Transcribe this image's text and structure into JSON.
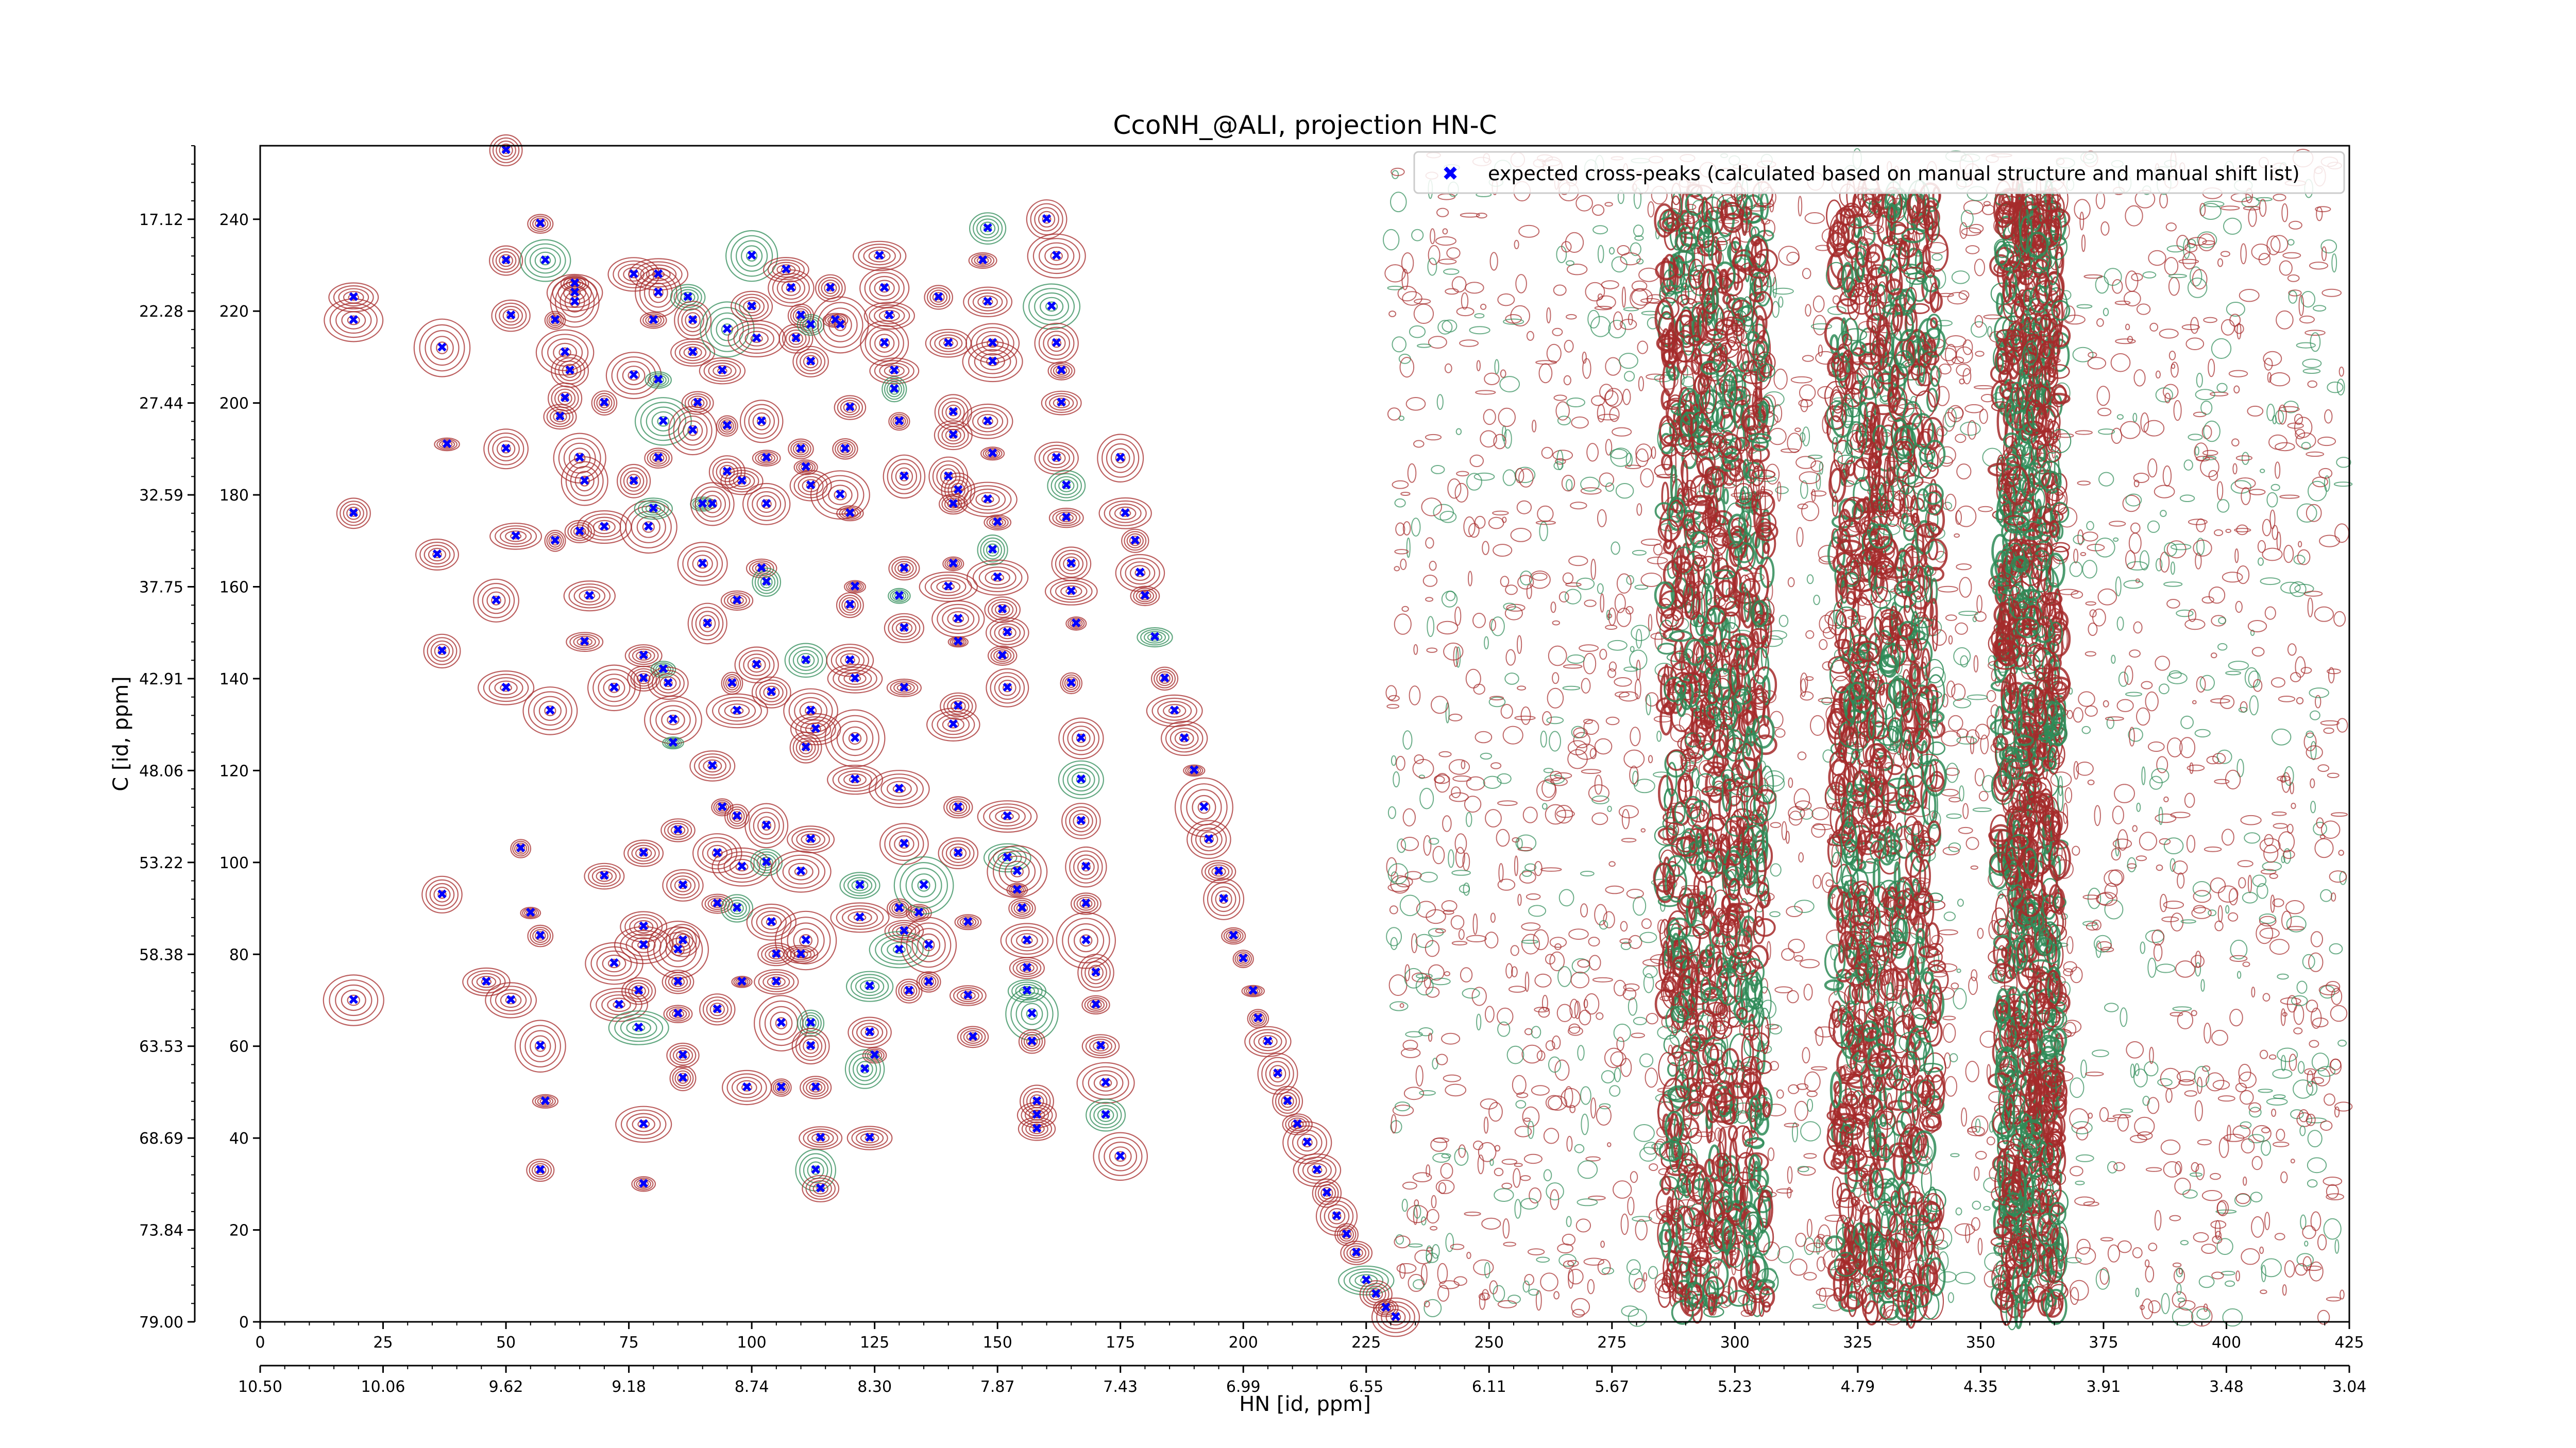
{
  "chart_data": {
    "type": "scatter",
    "title": "CcoNH_@ALI, projection HN-C",
    "xlabel": "",
    "ylabel": "C [id, ppm]",
    "secondary_xlabel": "HN [id, ppm]",
    "xlim": [
      0,
      425
    ],
    "ylim": [
      0,
      256
    ],
    "x_ticks": [
      "0",
      "25",
      "50",
      "75",
      "100",
      "125",
      "150",
      "175",
      "200",
      "225",
      "250",
      "275",
      "300",
      "325",
      "350",
      "375",
      "400",
      "425"
    ],
    "y_ticks": [
      "0",
      "20",
      "40",
      "60",
      "80",
      "100",
      "120",
      "140",
      "160",
      "180",
      "200",
      "220",
      "240"
    ],
    "y_ppm_ticks": [
      "79.00",
      "73.84",
      "68.69",
      "63.53",
      "58.38",
      "53.22",
      "48.06",
      "42.91",
      "37.75",
      "32.59",
      "27.44",
      "22.28",
      "17.12"
    ],
    "x_ppm_ticks": [
      "10.50",
      "10.06",
      "9.62",
      "9.18",
      "8.74",
      "8.30",
      "7.87",
      "7.43",
      "6.99",
      "6.55",
      "6.11",
      "5.67",
      "5.23",
      "4.79",
      "4.35",
      "3.91",
      "3.48",
      "3.04"
    ],
    "legend": {
      "position": "top-right",
      "marker_color": "#0000ff"
    },
    "colors": {
      "positive_contour": "#a52a2a",
      "negative_contour": "#2e8b57",
      "peak_marker": "#0000ff"
    },
    "series": [
      {
        "name": "expected cross-peaks (calculated based on manual structure and manual shift list)",
        "points": [
          [
            19,
            223
          ],
          [
            19,
            218
          ],
          [
            19,
            176
          ],
          [
            19,
            70
          ],
          [
            37,
            212
          ],
          [
            38,
            191
          ],
          [
            36,
            167
          ],
          [
            37,
            146
          ],
          [
            37,
            93
          ],
          [
            46,
            74
          ],
          [
            48,
            157
          ],
          [
            50,
            255
          ],
          [
            50,
            231
          ],
          [
            51,
            219
          ],
          [
            50,
            190
          ],
          [
            52,
            171
          ],
          [
            50,
            138
          ],
          [
            51,
            70
          ],
          [
            53,
            103
          ],
          [
            55,
            89
          ],
          [
            57,
            239
          ],
          [
            58,
            231
          ],
          [
            60,
            218
          ],
          [
            62,
            211
          ],
          [
            63,
            207
          ],
          [
            62,
            201
          ],
          [
            61,
            197
          ],
          [
            60,
            170
          ],
          [
            59,
            133
          ],
          [
            57,
            84
          ],
          [
            57,
            60
          ],
          [
            58,
            48
          ],
          [
            57,
            33
          ],
          [
            64,
            226
          ],
          [
            64,
            224
          ],
          [
            64,
            222
          ],
          [
            65,
            188
          ],
          [
            66,
            183
          ],
          [
            65,
            172
          ],
          [
            67,
            158
          ],
          [
            66,
            148
          ],
          [
            70,
            200
          ],
          [
            70,
            173
          ],
          [
            72,
            138
          ],
          [
            70,
            97
          ],
          [
            72,
            78
          ],
          [
            73,
            69
          ],
          [
            76,
            228
          ],
          [
            76,
            206
          ],
          [
            76,
            183
          ],
          [
            79,
            173
          ],
          [
            78,
            145
          ],
          [
            78,
            140
          ],
          [
            78,
            102
          ],
          [
            78,
            86
          ],
          [
            78,
            82
          ],
          [
            77,
            72
          ],
          [
            77,
            64
          ],
          [
            78,
            43
          ],
          [
            78,
            30
          ],
          [
            81,
            228
          ],
          [
            81,
            224
          ],
          [
            80,
            218
          ],
          [
            81,
            205
          ],
          [
            82,
            196
          ],
          [
            81,
            188
          ],
          [
            80,
            177
          ],
          [
            82,
            142
          ],
          [
            83,
            139
          ],
          [
            84,
            131
          ],
          [
            84,
            126
          ],
          [
            85,
            107
          ],
          [
            86,
            95
          ],
          [
            86,
            83
          ],
          [
            85,
            81
          ],
          [
            85,
            74
          ],
          [
            85,
            67
          ],
          [
            86,
            58
          ],
          [
            86,
            53
          ],
          [
            87,
            223
          ],
          [
            88,
            218
          ],
          [
            88,
            211
          ],
          [
            89,
            200
          ],
          [
            88,
            194
          ],
          [
            90,
            178
          ],
          [
            92,
            178
          ],
          [
            90,
            165
          ],
          [
            91,
            152
          ],
          [
            92,
            121
          ],
          [
            93,
            102
          ],
          [
            93,
            91
          ],
          [
            93,
            68
          ],
          [
            94,
            112
          ],
          [
            95,
            216
          ],
          [
            94,
            207
          ],
          [
            95,
            195
          ],
          [
            95,
            185
          ],
          [
            98,
            183
          ],
          [
            97,
            157
          ],
          [
            96,
            139
          ],
          [
            97,
            133
          ],
          [
            97,
            110
          ],
          [
            98,
            99
          ],
          [
            97,
            90
          ],
          [
            98,
            74
          ],
          [
            99,
            51
          ],
          [
            100,
            232
          ],
          [
            100,
            221
          ],
          [
            101,
            214
          ],
          [
            102,
            196
          ],
          [
            103,
            188
          ],
          [
            103,
            178
          ],
          [
            102,
            164
          ],
          [
            103,
            161
          ],
          [
            101,
            143
          ],
          [
            104,
            137
          ],
          [
            103,
            108
          ],
          [
            103,
            100
          ],
          [
            104,
            87
          ],
          [
            105,
            80
          ],
          [
            105,
            74
          ],
          [
            106,
            65
          ],
          [
            106,
            51
          ],
          [
            107,
            229
          ],
          [
            108,
            225
          ],
          [
            109,
            214
          ],
          [
            110,
            219
          ],
          [
            112,
            217
          ],
          [
            112,
            209
          ],
          [
            110,
            190
          ],
          [
            111,
            186
          ],
          [
            112,
            182
          ],
          [
            111,
            144
          ],
          [
            112,
            133
          ],
          [
            113,
            129
          ],
          [
            111,
            125
          ],
          [
            112,
            105
          ],
          [
            110,
            98
          ],
          [
            111,
            83
          ],
          [
            110,
            80
          ],
          [
            112,
            65
          ],
          [
            112,
            60
          ],
          [
            113,
            51
          ],
          [
            114,
            40
          ],
          [
            113,
            33
          ],
          [
            114,
            29
          ],
          [
            116,
            225
          ],
          [
            117,
            218
          ],
          [
            118,
            217
          ],
          [
            120,
            199
          ],
          [
            119,
            190
          ],
          [
            118,
            180
          ],
          [
            120,
            176
          ],
          [
            121,
            160
          ],
          [
            120,
            156
          ],
          [
            120,
            144
          ],
          [
            121,
            140
          ],
          [
            121,
            127
          ],
          [
            121,
            118
          ],
          [
            122,
            95
          ],
          [
            122,
            88
          ],
          [
            124,
            73
          ],
          [
            124,
            63
          ],
          [
            125,
            58
          ],
          [
            123,
            55
          ],
          [
            124,
            40
          ],
          [
            126,
            232
          ],
          [
            127,
            225
          ],
          [
            128,
            219
          ],
          [
            127,
            213
          ],
          [
            129,
            207
          ],
          [
            129,
            203
          ],
          [
            130,
            196
          ],
          [
            131,
            184
          ],
          [
            131,
            164
          ],
          [
            130,
            158
          ],
          [
            131,
            151
          ],
          [
            131,
            138
          ],
          [
            130,
            116
          ],
          [
            131,
            104
          ],
          [
            130,
            90
          ],
          [
            131,
            85
          ],
          [
            130,
            81
          ],
          [
            132,
            72
          ],
          [
            134,
            89
          ],
          [
            135,
            95
          ],
          [
            136,
            82
          ],
          [
            136,
            74
          ],
          [
            138,
            223
          ],
          [
            140,
            213
          ],
          [
            141,
            198
          ],
          [
            141,
            193
          ],
          [
            140,
            184
          ],
          [
            142,
            181
          ],
          [
            141,
            178
          ],
          [
            141,
            165
          ],
          [
            140,
            160
          ],
          [
            142,
            153
          ],
          [
            142,
            148
          ],
          [
            142,
            134
          ],
          [
            141,
            130
          ],
          [
            142,
            112
          ],
          [
            142,
            102
          ],
          [
            144,
            87
          ],
          [
            144,
            71
          ],
          [
            145,
            62
          ],
          [
            148,
            238
          ],
          [
            147,
            231
          ],
          [
            148,
            222
          ],
          [
            149,
            213
          ],
          [
            149,
            209
          ],
          [
            148,
            196
          ],
          [
            149,
            189
          ],
          [
            148,
            179
          ],
          [
            150,
            174
          ],
          [
            149,
            168
          ],
          [
            150,
            162
          ],
          [
            151,
            155
          ],
          [
            152,
            150
          ],
          [
            151,
            145
          ],
          [
            152,
            138
          ],
          [
            152,
            110
          ],
          [
            152,
            101
          ],
          [
            154,
            98
          ],
          [
            154,
            94
          ],
          [
            155,
            90
          ],
          [
            156,
            83
          ],
          [
            156,
            77
          ],
          [
            156,
            72
          ],
          [
            157,
            67
          ],
          [
            157,
            61
          ],
          [
            158,
            48
          ],
          [
            158,
            45
          ],
          [
            158,
            42
          ],
          [
            160,
            240
          ],
          [
            162,
            232
          ],
          [
            161,
            221
          ],
          [
            162,
            213
          ],
          [
            163,
            207
          ],
          [
            163,
            200
          ],
          [
            162,
            188
          ],
          [
            164,
            182
          ],
          [
            164,
            175
          ],
          [
            165,
            165
          ],
          [
            165,
            159
          ],
          [
            166,
            152
          ],
          [
            165,
            139
          ],
          [
            167,
            127
          ],
          [
            167,
            118
          ],
          [
            167,
            109
          ],
          [
            168,
            99
          ],
          [
            168,
            91
          ],
          [
            168,
            83
          ],
          [
            170,
            76
          ],
          [
            170,
            69
          ],
          [
            171,
            60
          ],
          [
            172,
            52
          ],
          [
            172,
            45
          ],
          [
            175,
            36
          ],
          [
            175,
            188
          ],
          [
            176,
            176
          ],
          [
            178,
            170
          ],
          [
            179,
            163
          ],
          [
            180,
            158
          ],
          [
            182,
            149
          ],
          [
            184,
            140
          ],
          [
            186,
            133
          ],
          [
            188,
            127
          ],
          [
            190,
            120
          ],
          [
            192,
            112
          ],
          [
            193,
            105
          ],
          [
            195,
            98
          ],
          [
            196,
            92
          ],
          [
            198,
            84
          ],
          [
            200,
            79
          ],
          [
            202,
            72
          ],
          [
            203,
            66
          ],
          [
            205,
            61
          ],
          [
            207,
            54
          ],
          [
            209,
            48
          ],
          [
            211,
            43
          ],
          [
            213,
            39
          ],
          [
            215,
            33
          ],
          [
            217,
            28
          ],
          [
            219,
            23
          ],
          [
            221,
            19
          ],
          [
            223,
            15
          ],
          [
            225,
            9
          ],
          [
            227,
            6
          ],
          [
            229,
            3
          ],
          [
            231,
            1
          ]
        ]
      }
    ]
  }
}
